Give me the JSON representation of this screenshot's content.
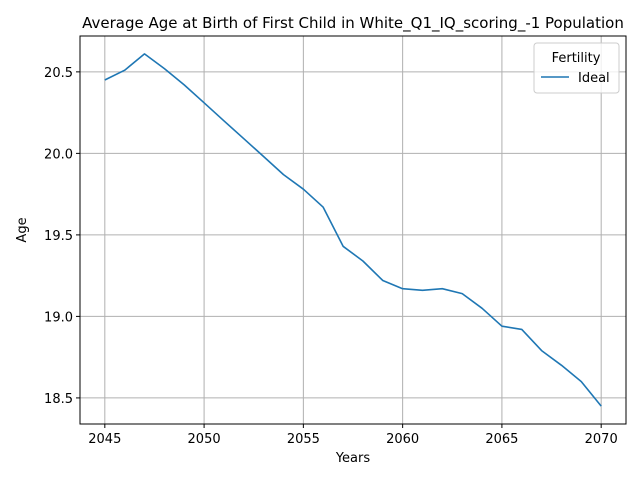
{
  "chart_data": {
    "type": "line",
    "title": "Average Age at Birth of First Child in White_Q1_IQ_scoring_-1 Population",
    "xlabel": "Years",
    "ylabel": "Age",
    "xlim": [
      2043.75,
      2071.25
    ],
    "ylim": [
      18.34,
      20.72
    ],
    "x_ticks": [
      "2045",
      "2050",
      "2055",
      "2060",
      "2065",
      "2070"
    ],
    "y_ticks": [
      "18.5",
      "19.0",
      "19.5",
      "20.0",
      "20.5"
    ],
    "grid": true,
    "legend": {
      "title": "Fertility",
      "placement": "top-right"
    },
    "series": [
      {
        "name": "Ideal",
        "color": "#1f77b4",
        "x": [
          2045,
          2046,
          2047,
          2048,
          2049,
          2050,
          2051,
          2052,
          2053,
          2054,
          2055,
          2056,
          2057,
          2058,
          2059,
          2060,
          2061,
          2062,
          2063,
          2064,
          2065,
          2066,
          2067,
          2068,
          2069,
          2070
        ],
        "y": [
          20.45,
          20.51,
          20.61,
          20.52,
          20.42,
          20.31,
          20.2,
          20.09,
          19.98,
          19.87,
          19.78,
          19.67,
          19.43,
          19.34,
          19.22,
          19.17,
          19.16,
          19.17,
          19.14,
          19.05,
          18.94,
          18.92,
          18.79,
          18.7,
          18.6,
          18.45
        ]
      }
    ]
  }
}
